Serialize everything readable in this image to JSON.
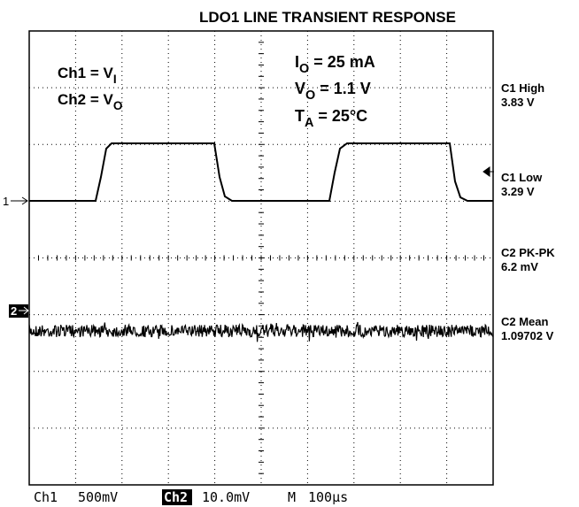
{
  "title": "LDO1 LINE TRANSIENT RESPONSE",
  "channels": [
    [
      {
        "text": "Ch1 = V"
      },
      {
        "sub": "I"
      }
    ],
    [
      {
        "text": "Ch2 = V"
      },
      {
        "sub": "O"
      }
    ]
  ],
  "conditions": [
    [
      {
        "text": "I"
      },
      {
        "sub": "O"
      },
      {
        "text": " = 25 mA"
      }
    ],
    [
      {
        "text": "V"
      },
      {
        "sub": "O"
      },
      {
        "text": " = 1.1 V"
      }
    ],
    [
      {
        "text": "T"
      },
      {
        "sub": "A"
      },
      {
        "text": " = 25°C"
      }
    ]
  ],
  "measurements": [
    {
      "name": "C1 High",
      "value": "3.83 V"
    },
    {
      "name": "C1 Low",
      "value": "3.29 V"
    },
    {
      "name": "C2 PK-PK",
      "value": "6.2 mV"
    },
    {
      "name": "C2 Mean",
      "value": "1.09702 V"
    }
  ],
  "markers": [
    "1",
    "2"
  ],
  "footer": {
    "ch1": "Ch1",
    "ch1_scale": "500mV",
    "ch2": "Ch2",
    "ch2_scale": "10.0mV",
    "time": "M",
    "time_scale": "100µs"
  }
}
